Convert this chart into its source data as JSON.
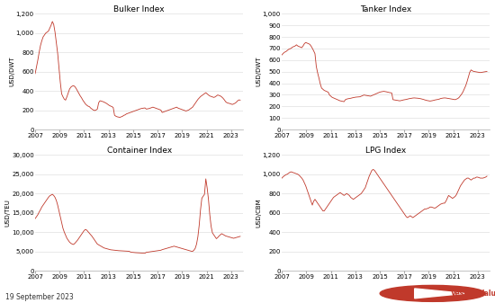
{
  "title_bulker": "Bulker Index",
  "title_tanker": "Tanker Index",
  "title_container": "Container Index",
  "title_lpg": "LPG Index",
  "ylabel_bulker": "USD/DWT",
  "ylabel_tanker": "USD/DWT",
  "ylabel_container": "USD/TEU",
  "ylabel_lpg": "USD/CBM",
  "date_label": "19 September 2023",
  "line_color": "#c0392b",
  "background_color": "#ffffff",
  "grid_color": "#e0e0e0",
  "bulker": {
    "ylim": [
      0,
      1200
    ],
    "yticks": [
      0,
      200,
      400,
      600,
      800,
      1000,
      1200
    ],
    "data": [
      580,
      650,
      720,
      800,
      870,
      920,
      960,
      980,
      1000,
      1010,
      1020,
      1050,
      1080,
      1120,
      1090,
      1010,
      900,
      790,
      640,
      490,
      370,
      340,
      315,
      305,
      340,
      380,
      420,
      440,
      450,
      455,
      445,
      425,
      400,
      375,
      350,
      330,
      305,
      285,
      265,
      252,
      242,
      237,
      222,
      212,
      202,
      197,
      202,
      212,
      278,
      298,
      295,
      290,
      285,
      278,
      270,
      260,
      250,
      243,
      238,
      228,
      148,
      138,
      132,
      129,
      126,
      131,
      137,
      147,
      152,
      162,
      167,
      172,
      177,
      182,
      187,
      192,
      197,
      202,
      207,
      212,
      217,
      220,
      222,
      224,
      212,
      214,
      217,
      222,
      227,
      232,
      227,
      222,
      217,
      212,
      207,
      202,
      177,
      182,
      187,
      192,
      197,
      202,
      207,
      212,
      217,
      222,
      227,
      232,
      222,
      217,
      212,
      207,
      202,
      197,
      192,
      197,
      202,
      212,
      222,
      232,
      252,
      272,
      292,
      312,
      327,
      342,
      352,
      362,
      372,
      382,
      370,
      358,
      348,
      343,
      338,
      333,
      338,
      348,
      358,
      353,
      348,
      338,
      325,
      308,
      288,
      278,
      273,
      270,
      265,
      260,
      265,
      272,
      282,
      297,
      307,
      305
    ]
  },
  "tanker": {
    "ylim": [
      0,
      1000
    ],
    "yticks": [
      0,
      100,
      200,
      300,
      400,
      500,
      600,
      700,
      800,
      900,
      1000
    ],
    "data": [
      645,
      658,
      668,
      673,
      682,
      692,
      697,
      702,
      712,
      717,
      722,
      732,
      722,
      717,
      712,
      707,
      722,
      742,
      752,
      747,
      742,
      737,
      722,
      702,
      680,
      655,
      545,
      490,
      445,
      395,
      358,
      348,
      338,
      333,
      328,
      323,
      298,
      288,
      278,
      273,
      268,
      263,
      258,
      253,
      248,
      246,
      243,
      241,
      258,
      263,
      266,
      268,
      270,
      273,
      276,
      278,
      280,
      281,
      282,
      283,
      288,
      293,
      298,
      296,
      294,
      292,
      290,
      288,
      293,
      298,
      303,
      308,
      313,
      318,
      323,
      326,
      328,
      330,
      328,
      326,
      323,
      320,
      318,
      316,
      258,
      256,
      254,
      252,
      250,
      248,
      250,
      253,
      256,
      258,
      260,
      263,
      266,
      268,
      270,
      272,
      273,
      272,
      271,
      270,
      268,
      266,
      263,
      260,
      256,
      253,
      250,
      248,
      246,
      248,
      250,
      253,
      256,
      258,
      260,
      263,
      268,
      270,
      272,
      273,
      272,
      270,
      268,
      266,
      264,
      262,
      260,
      258,
      263,
      268,
      278,
      293,
      308,
      328,
      353,
      380,
      415,
      455,
      495,
      515,
      507,
      502,
      500,
      498,
      496,
      494,
      492,
      494,
      496,
      498,
      500,
      502
    ]
  },
  "container": {
    "ylim": [
      0,
      30000
    ],
    "yticks": [
      0,
      5000,
      10000,
      15000,
      20000,
      25000,
      30000
    ],
    "data": [
      13500,
      14000,
      14500,
      15200,
      15800,
      16500,
      17000,
      17500,
      18000,
      18500,
      19000,
      19400,
      19600,
      19800,
      19500,
      19000,
      18200,
      17000,
      15500,
      14000,
      12500,
      11000,
      10000,
      9200,
      8400,
      7900,
      7400,
      7100,
      6900,
      6800,
      7100,
      7500,
      7900,
      8400,
      8900,
      9400,
      9900,
      10400,
      10700,
      10500,
      10100,
      9700,
      9300,
      8900,
      8400,
      7900,
      7400,
      6900,
      6700,
      6500,
      6300,
      6100,
      5900,
      5800,
      5700,
      5600,
      5500,
      5420,
      5380,
      5320,
      5280,
      5240,
      5210,
      5190,
      5170,
      5150,
      5130,
      5110,
      5090,
      5070,
      5050,
      5030,
      4850,
      4770,
      4730,
      4690,
      4670,
      4650,
      4630,
      4610,
      4590,
      4570,
      4550,
      4530,
      4750,
      4800,
      4850,
      4900,
      4950,
      5000,
      5050,
      5100,
      5150,
      5200,
      5250,
      5300,
      5450,
      5550,
      5650,
      5750,
      5850,
      5950,
      6050,
      6150,
      6250,
      6350,
      6250,
      6150,
      6050,
      5950,
      5850,
      5750,
      5650,
      5550,
      5450,
      5350,
      5250,
      5150,
      5050,
      5010,
      5300,
      5800,
      6900,
      8800,
      11800,
      15800,
      18800,
      19300,
      19800,
      23800,
      21500,
      18500,
      14500,
      11500,
      9800,
      9300,
      8800,
      8300,
      8600,
      9000,
      9300,
      9600,
      9400,
      9200,
      9000,
      8900,
      8800,
      8700,
      8600,
      8500,
      8400,
      8500,
      8600,
      8700,
      8800,
      8900
    ]
  },
  "lpg": {
    "ylim": [
      0,
      1200
    ],
    "yticks": [
      0,
      200,
      400,
      600,
      800,
      1000,
      1200
    ],
    "data": [
      960,
      975,
      985,
      995,
      1000,
      1010,
      1020,
      1025,
      1020,
      1015,
      1010,
      1005,
      1000,
      990,
      975,
      960,
      940,
      910,
      880,
      840,
      800,
      760,
      720,
      680,
      720,
      740,
      720,
      700,
      680,
      660,
      640,
      620,
      620,
      640,
      660,
      680,
      700,
      720,
      740,
      760,
      770,
      780,
      790,
      800,
      810,
      800,
      790,
      780,
      790,
      800,
      790,
      780,
      760,
      750,
      740,
      750,
      760,
      770,
      780,
      790,
      800,
      820,
      840,
      860,
      900,
      940,
      980,
      1010,
      1040,
      1050,
      1040,
      1020,
      1000,
      980,
      960,
      940,
      920,
      900,
      880,
      860,
      840,
      820,
      800,
      780,
      760,
      740,
      720,
      700,
      680,
      660,
      640,
      620,
      600,
      580,
      560,
      550,
      560,
      570,
      560,
      550,
      560,
      570,
      580,
      590,
      600,
      610,
      620,
      630,
      640,
      640,
      645,
      650,
      660,
      660,
      655,
      650,
      650,
      660,
      670,
      680,
      690,
      695,
      700,
      700,
      720,
      750,
      780,
      770,
      760,
      750,
      760,
      770,
      790,
      820,
      850,
      880,
      900,
      920,
      940,
      950,
      960,
      960,
      950,
      940,
      950,
      960,
      960,
      970,
      970,
      965,
      960,
      960,
      960,
      965,
      970,
      980
    ]
  }
}
